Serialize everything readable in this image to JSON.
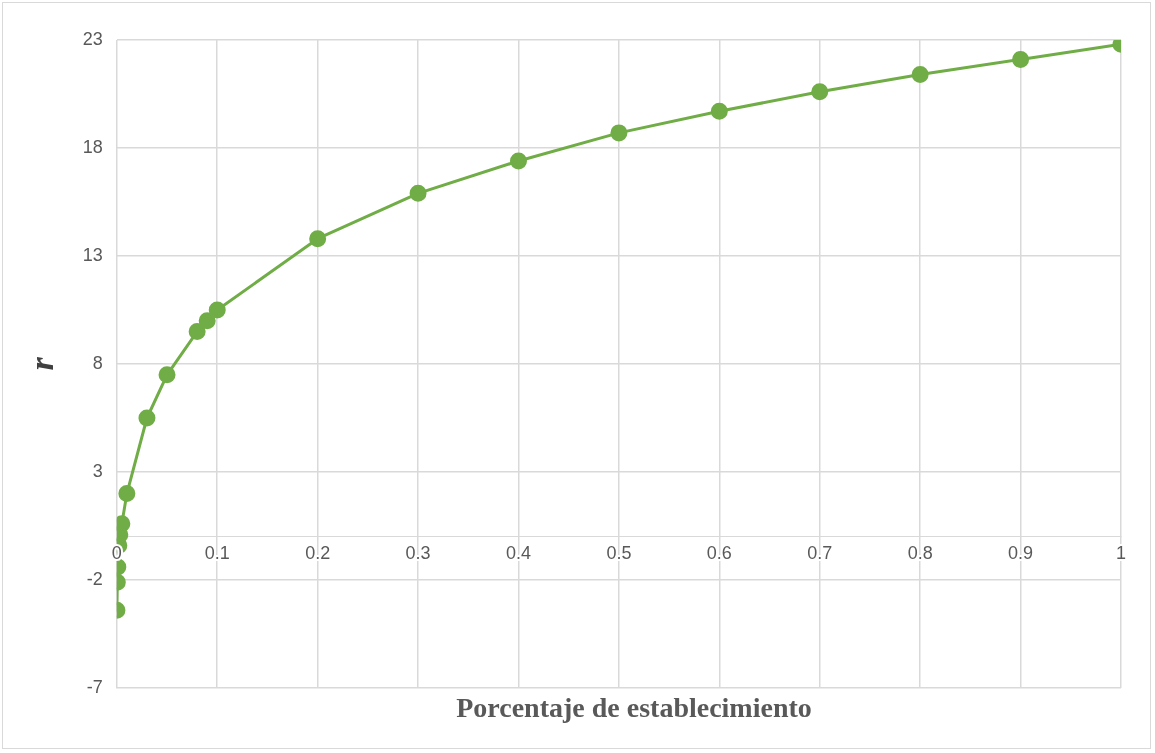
{
  "chart_data": {
    "type": "line",
    "xlabel": "Porcentaje de establecimiento",
    "ylabel": "r",
    "x": [
      0.0001,
      0.0005,
      0.001,
      0.002,
      0.003,
      0.005,
      0.01,
      0.03,
      0.05,
      0.08,
      0.09,
      0.1,
      0.2,
      0.3,
      0.4,
      0.5,
      0.6,
      0.7,
      0.8,
      0.9,
      1
    ],
    "series": [
      {
        "color": "#70ad47",
        "values": [
          -3.4,
          -2.1,
          -1.4,
          -0.4,
          0.1,
          0.6,
          2.0,
          5.5,
          7.5,
          9.5,
          10.0,
          10.5,
          13.8,
          15.9,
          17.4,
          18.7,
          19.7,
          20.6,
          21.4,
          22.1,
          22.8
        ]
      }
    ],
    "xlim": [
      0,
      1
    ],
    "xticks": [
      0,
      0.1,
      0.2,
      0.3,
      0.4,
      0.5,
      0.6,
      0.7,
      0.8,
      0.9,
      1
    ],
    "ylim": [
      -7,
      23
    ],
    "yticks": [
      -7,
      -2,
      3,
      8,
      13,
      18,
      23
    ],
    "grid": true,
    "legend": false,
    "marker": "circle",
    "line_style": "solid"
  }
}
